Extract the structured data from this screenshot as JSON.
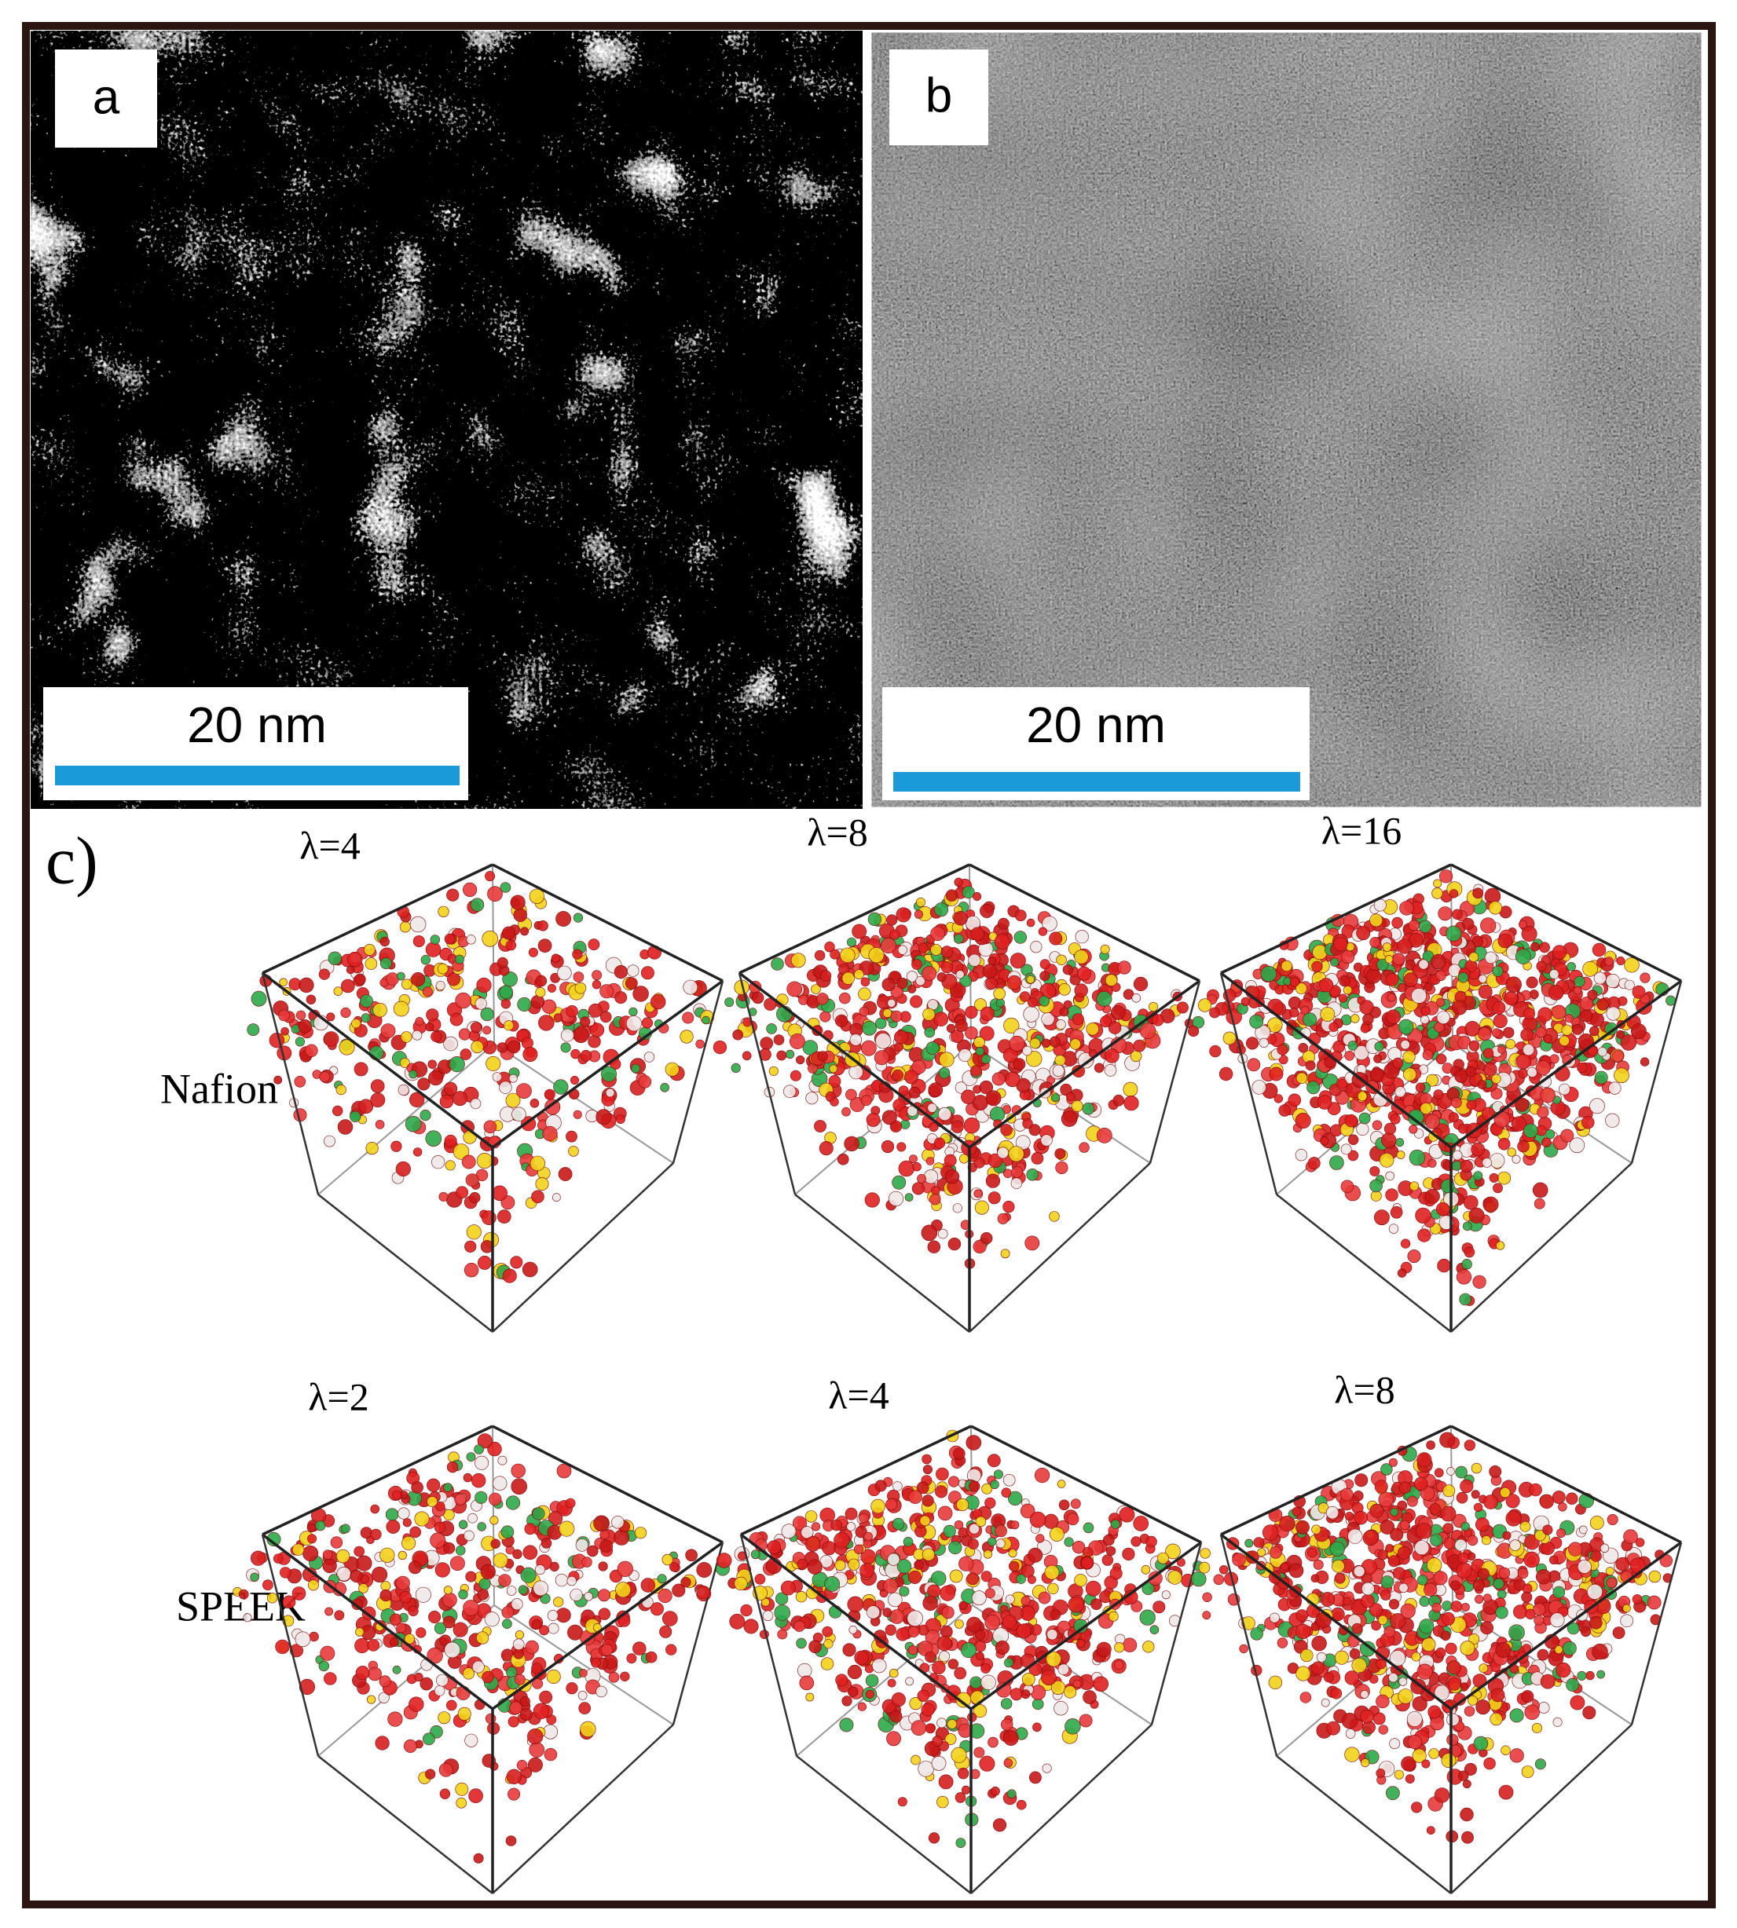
{
  "panels": {
    "a": {
      "label": "a",
      "scale_label": "20 nm"
    },
    "b": {
      "label": "b",
      "scale_label": "20 nm"
    },
    "c": {
      "label": "c)",
      "rows": [
        {
          "name": "Nafion",
          "columns": [
            "λ=4",
            "λ=8",
            "λ=16"
          ]
        },
        {
          "name": "SPEEK",
          "columns": [
            "λ=2",
            "λ=4",
            "λ=8"
          ]
        }
      ]
    }
  }
}
